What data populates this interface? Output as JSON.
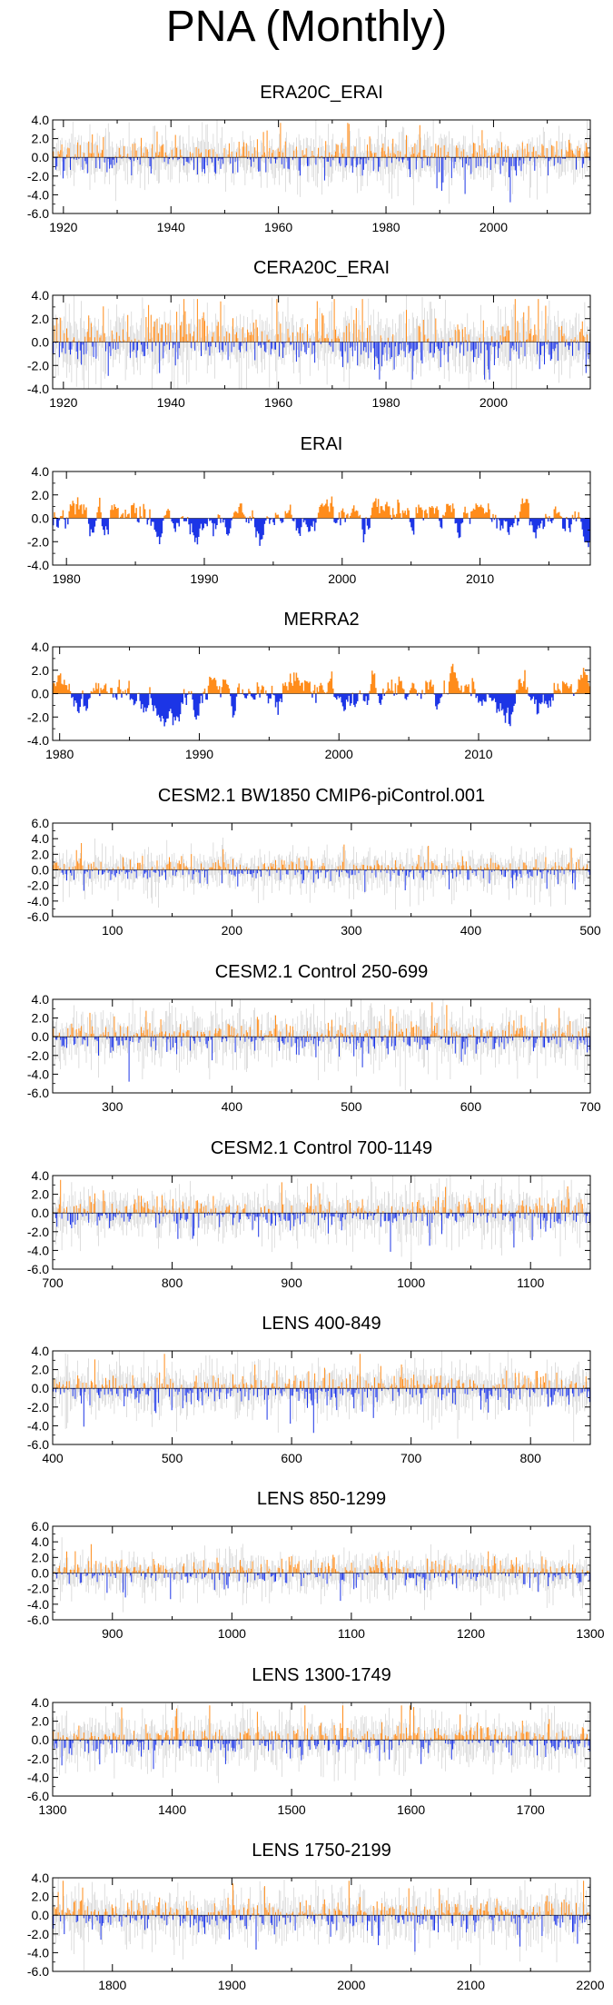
{
  "title": "PNA (Monthly)",
  "colors": {
    "positive": "#ff8c1a",
    "negative": "#1c35e6",
    "ensemble": "#c8c8c8",
    "frame": "#000000"
  },
  "chart_data": [
    {
      "type": "bar",
      "title": "ERA20C_ERAI",
      "xlim": [
        1918,
        2018
      ],
      "ylim": [
        -6,
        4
      ],
      "yticks": [
        "4.0",
        "2.0",
        "0.0",
        "-2.0",
        "-4.0",
        "-6.0"
      ],
      "xticks": [
        1920,
        1940,
        1960,
        1980,
        2000
      ],
      "grey_spread": true,
      "style": "spiky",
      "amp": 1.1,
      "seed": 11
    },
    {
      "type": "bar",
      "title": "CERA20C_ERAI",
      "xlim": [
        1918,
        2018
      ],
      "ylim": [
        -4,
        4
      ],
      "yticks": [
        "4.0",
        "2.0",
        "0.0",
        "-2.0",
        "-4.0"
      ],
      "xticks": [
        1920,
        1940,
        1960,
        1980,
        2000
      ],
      "grey_spread": true,
      "style": "spiky",
      "amp": 1.25,
      "seed": 23
    },
    {
      "type": "bar",
      "title": "ERAI",
      "xlim": [
        1979,
        2018
      ],
      "ylim": [
        -4,
        4
      ],
      "yticks": [
        "4.0",
        "2.0",
        "0.0",
        "-2.0",
        "-4.0"
      ],
      "xticks": [
        1980,
        1990,
        2000,
        2010
      ],
      "grey_spread": false,
      "style": "smooth",
      "amp": 1.2,
      "seed": 37
    },
    {
      "type": "bar",
      "title": "MERRA2",
      "xlim": [
        1979.5,
        2018
      ],
      "ylim": [
        -4,
        4
      ],
      "yticks": [
        "4.0",
        "2.0",
        "0.0",
        "-2.0",
        "-4.0"
      ],
      "xticks": [
        1980,
        1990,
        2000,
        2010
      ],
      "grey_spread": false,
      "style": "smooth",
      "amp": 1.25,
      "seed": 41
    },
    {
      "type": "bar",
      "title": "CESM2.1 BW1850 CMIP6-piControl.001",
      "xlim": [
        50,
        500
      ],
      "ylim": [
        -6,
        6
      ],
      "yticks": [
        "6.0",
        "4.0",
        "2.0",
        "0.0",
        "-2.0",
        "-4.0",
        "-6.0"
      ],
      "xticks": [
        100,
        200,
        300,
        400,
        500
      ],
      "grey_spread": true,
      "style": "spiky",
      "amp": 0.9,
      "seed": 53
    },
    {
      "type": "bar",
      "title": "CESM2.1 Control 250-699",
      "xlim": [
        250,
        700
      ],
      "ylim": [
        -6,
        4
      ],
      "yticks": [
        "4.0",
        "2.0",
        "0.0",
        "-2.0",
        "-4.0",
        "-6.0"
      ],
      "xticks": [
        300,
        400,
        500,
        600,
        700
      ],
      "grey_spread": true,
      "style": "spiky",
      "amp": 1.0,
      "seed": 67
    },
    {
      "type": "bar",
      "title": "CESM2.1 Control 700-1149",
      "xlim": [
        700,
        1150
      ],
      "ylim": [
        -6,
        4
      ],
      "yticks": [
        "4.0",
        "2.0",
        "0.0",
        "-2.0",
        "-4.0",
        "-6.0"
      ],
      "xticks": [
        700,
        800,
        900,
        1000,
        1100
      ],
      "grey_spread": true,
      "style": "spiky",
      "amp": 1.0,
      "seed": 71
    },
    {
      "type": "bar",
      "title": "LENS 400-849",
      "xlim": [
        400,
        850
      ],
      "ylim": [
        -6,
        4
      ],
      "yticks": [
        "4.0",
        "2.0",
        "0.0",
        "-2.0",
        "-4.0",
        "-6.0"
      ],
      "xticks": [
        400,
        500,
        600,
        700,
        800
      ],
      "grey_spread": true,
      "style": "spiky",
      "amp": 1.0,
      "seed": 83
    },
    {
      "type": "bar",
      "title": "LENS 850-1299",
      "xlim": [
        850,
        1300
      ],
      "ylim": [
        -6,
        6
      ],
      "yticks": [
        "6.0",
        "4.0",
        "2.0",
        "0.0",
        "-2.0",
        "-4.0",
        "-6.0"
      ],
      "xticks": [
        900,
        1000,
        1100,
        1200,
        1300
      ],
      "grey_spread": true,
      "style": "spiky",
      "amp": 0.95,
      "seed": 97
    },
    {
      "type": "bar",
      "title": "LENS 1300-1749",
      "xlim": [
        1300,
        1750
      ],
      "ylim": [
        -6,
        4
      ],
      "yticks": [
        "4.0",
        "2.0",
        "0.0",
        "-2.0",
        "-4.0",
        "-6.0"
      ],
      "xticks": [
        1300,
        1400,
        1500,
        1600,
        1700
      ],
      "grey_spread": true,
      "style": "spiky",
      "amp": 1.0,
      "seed": 101
    },
    {
      "type": "bar",
      "title": "LENS 1750-2199",
      "xlim": [
        1750,
        2200
      ],
      "ylim": [
        -6,
        4
      ],
      "yticks": [
        "4.0",
        "2.0",
        "0.0",
        "-2.0",
        "-4.0",
        "-6.0"
      ],
      "xticks": [
        1800,
        1900,
        2000,
        2100,
        2200
      ],
      "grey_spread": true,
      "style": "spiky",
      "amp": 1.0,
      "seed": 113
    }
  ]
}
